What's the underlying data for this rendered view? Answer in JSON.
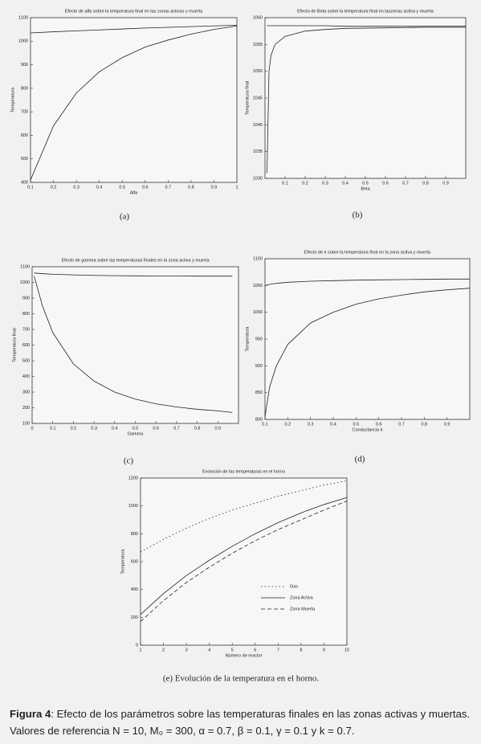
{
  "chart_data": [
    {
      "type": "line",
      "title": "Efecto de alfa sobre la temperatura final en las zonas activas y muerta",
      "x_label": "Alfa",
      "y_label": "Temperatura",
      "caption": "(a)",
      "x": [
        0.1,
        0.2,
        0.3,
        0.4,
        0.5,
        0.6,
        0.7,
        0.8,
        0.9,
        1
      ],
      "series": [
        {
          "color": "#222222",
          "dash": "solid",
          "values": [
            1035,
            1040,
            1044,
            1048,
            1052,
            1056,
            1059,
            1062,
            1065,
            1068
          ]
        },
        {
          "color": "#222222",
          "dash": "solid",
          "values": [
            410,
            640,
            780,
            870,
            930,
            975,
            1005,
            1030,
            1050,
            1065
          ]
        }
      ],
      "xlim": [
        0.1,
        1
      ],
      "xticks": [
        0.1,
        0.2,
        0.3,
        0.4,
        0.5,
        0.6,
        0.7,
        0.8,
        0.9,
        1
      ],
      "ylim": [
        400,
        1100
      ],
      "yticks": [
        400,
        500,
        600,
        700,
        800,
        900,
        1000,
        1100
      ]
    },
    {
      "type": "line",
      "title": "Efecto de Beta sobre la temperatura final en laszonas activa y muerta",
      "x_label": "Beta",
      "y_label": "Temperatura final",
      "caption": "(b)",
      "x": [
        0.01,
        0.02,
        0.03,
        0.05,
        0.1,
        0.2,
        0.3,
        0.4,
        0.6,
        0.8,
        1
      ],
      "series": [
        {
          "color": "#222222",
          "dash": "solid",
          "values": [
            1058.5,
            1058.5,
            1058.5,
            1058.5,
            1058.5,
            1058.5,
            1058.5,
            1058.4,
            1058.4,
            1058.4,
            1058.4
          ]
        },
        {
          "color": "#222222",
          "dash": "solid",
          "values": [
            1031,
            1050,
            1053,
            1055,
            1056.5,
            1057.5,
            1057.8,
            1058,
            1058.1,
            1058.2,
            1058.2
          ]
        }
      ],
      "xlim": [
        0,
        1
      ],
      "xticks": [
        0.1,
        0.2,
        0.3,
        0.4,
        0.5,
        0.6,
        0.7,
        0.8,
        0.9
      ],
      "ylim": [
        1030,
        1060
      ],
      "yticks": [
        1030,
        1035,
        1040,
        1045,
        1050,
        1055,
        1060
      ]
    },
    {
      "type": "line",
      "title": "Efecto  de gamma sobre las temperaturas finales en la zona activa y muerta",
      "x_label": "Gamma",
      "y_label": "Temperatura final",
      "caption": "(c)",
      "x": [
        0.01,
        0.05,
        0.1,
        0.2,
        0.3,
        0.4,
        0.5,
        0.6,
        0.7,
        0.8,
        0.9,
        0.97
      ],
      "series": [
        {
          "color": "#222222",
          "dash": "solid",
          "values": [
            1060,
            1056,
            1052,
            1048,
            1045,
            1043,
            1042,
            1041,
            1041,
            1040,
            1040,
            1040
          ]
        },
        {
          "color": "#222222",
          "dash": "solid",
          "values": [
            1040,
            850,
            680,
            480,
            370,
            300,
            255,
            225,
            205,
            190,
            180,
            170
          ]
        }
      ],
      "xlim": [
        0,
        1
      ],
      "xticks": [
        0,
        0.1,
        0.2,
        0.3,
        0.4,
        0.5,
        0.6,
        0.7,
        0.8,
        0.9
      ],
      "ylim": [
        100,
        1100
      ],
      "yticks": [
        100,
        200,
        300,
        400,
        500,
        600,
        700,
        800,
        900,
        1000,
        1100
      ]
    },
    {
      "type": "line",
      "title": "Efecto de k sobre la temperatura final en la zona activa y muerta",
      "x_label": "Conductancia k",
      "y_label": "Temperatura",
      "caption": "(d)",
      "x": [
        0.1,
        0.12,
        0.15,
        0.2,
        0.3,
        0.4,
        0.5,
        0.6,
        0.7,
        0.8,
        0.9,
        1
      ],
      "series": [
        {
          "color": "#222222",
          "dash": "solid",
          "values": [
            1050,
            1052,
            1054,
            1056,
            1058,
            1059,
            1060,
            1060.5,
            1061,
            1061.5,
            1062,
            1062
          ]
        },
        {
          "color": "#222222",
          "dash": "solid",
          "values": [
            805,
            860,
            900,
            940,
            980,
            1000,
            1015,
            1025,
            1032,
            1038,
            1042,
            1045
          ]
        }
      ],
      "xlim": [
        0.1,
        1
      ],
      "xticks": [
        0.1,
        0.2,
        0.3,
        0.4,
        0.5,
        0.6,
        0.7,
        0.8,
        0.9
      ],
      "ylim": [
        800,
        1100
      ],
      "yticks": [
        800,
        850,
        900,
        950,
        1000,
        1050,
        1100
      ]
    },
    {
      "type": "line",
      "title": "Evolución de las temperaturas en el horno",
      "x_label": "Número de reactor",
      "y_label": "Temperatura",
      "caption": "(e) Evolución de la temperatura en el horno.",
      "x": [
        1,
        2,
        3,
        4,
        5,
        6,
        7,
        8,
        9,
        10
      ],
      "series": [
        {
          "name": "Gas",
          "color": "#222222",
          "dash": "dotted",
          "values": [
            670,
            760,
            840,
            910,
            970,
            1020,
            1070,
            1110,
            1150,
            1180
          ]
        },
        {
          "name": "Zona Activa",
          "color": "#222222",
          "dash": "solid",
          "values": [
            220,
            370,
            500,
            610,
            710,
            800,
            880,
            950,
            1010,
            1060
          ]
        },
        {
          "name": "Zona Muerta",
          "color": "#222222",
          "dash": "dashed",
          "values": [
            170,
            320,
            450,
            560,
            660,
            750,
            830,
            900,
            970,
            1035
          ]
        }
      ],
      "xlim": [
        1,
        10
      ],
      "xticks": [
        1,
        2,
        3,
        4,
        5,
        6,
        7,
        8,
        9,
        10
      ],
      "ylim": [
        0,
        1200
      ],
      "yticks": [
        0,
        200,
        400,
        600,
        800,
        1000,
        1200
      ]
    }
  ],
  "figure": {
    "label": "Figura 4",
    "text": ": Efecto de los parámetros sobre las temperaturas finales en las zonas activas y muertas. Valores de referencia N = 10, M₀ = 300, α = 0.7, β = 0.1, γ = 0.1 y k = 0.7."
  }
}
